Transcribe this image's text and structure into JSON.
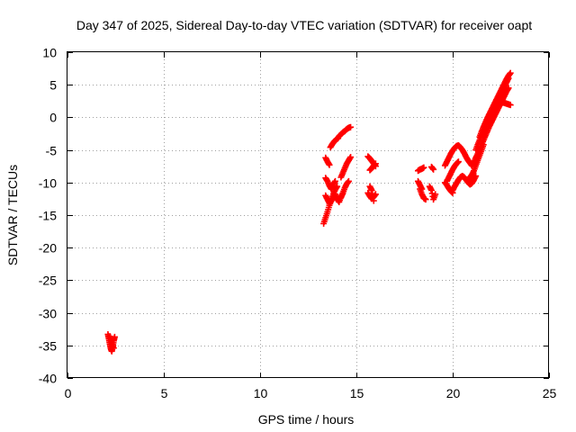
{
  "chart_data": {
    "type": "scatter",
    "title": "Day 347 of 2025, Sidereal Day-to-day VTEC variation (SDTVAR) for receiver oapt",
    "xlabel": "GPS time / hours",
    "ylabel": "SDTVAR / TECUs",
    "xlim": [
      0,
      25
    ],
    "ylim": [
      -40,
      10
    ],
    "xticks": [
      0,
      5,
      10,
      15,
      20,
      25
    ],
    "yticks": [
      -40,
      -35,
      -30,
      -25,
      -20,
      -15,
      -10,
      -5,
      0,
      5,
      10
    ],
    "grid": true,
    "marker": "plus",
    "color": "#ff0000",
    "series": [
      {
        "name": "SDTVAR",
        "segments": [
          {
            "x": [
              2.1,
              2.15,
              2.2,
              2.25,
              2.3,
              2.35,
              2.4,
              2.45
            ],
            "y": [
              -33.3,
              -34.0,
              -34.8,
              -35.5,
              -35.9,
              -35.2,
              -34.3,
              -33.7
            ]
          },
          {
            "x": [
              2.2,
              2.3,
              2.4
            ],
            "y": [
              -33.6,
              -34.6,
              -35.4
            ]
          },
          {
            "x": [
              13.3,
              13.4,
              13.5,
              13.6,
              13.7,
              13.8,
              13.9,
              14.0
            ],
            "y": [
              -16.3,
              -15.4,
              -14.5,
              -13.5,
              -12.7,
              -11.8,
              -11.1,
              -10.6
            ]
          },
          {
            "x": [
              13.4,
              13.5,
              13.6,
              13.7,
              13.8,
              13.9,
              14.0,
              14.1,
              14.2,
              14.3
            ],
            "y": [
              -12.0,
              -12.6,
              -13.2,
              -12.8,
              -12.2,
              -11.8,
              -12.5,
              -13.0,
              -12.2,
              -11.6
            ]
          },
          {
            "x": [
              13.4,
              13.5,
              13.6,
              13.7,
              13.8,
              13.9
            ],
            "y": [
              -9.3,
              -9.8,
              -10.5,
              -11.0,
              -10.3,
              -9.8
            ]
          },
          {
            "x": [
              13.4,
              13.5,
              13.6
            ],
            "y": [
              -6.2,
              -6.8,
              -7.3
            ]
          },
          {
            "x": [
              13.65,
              13.75,
              13.85,
              13.95,
              14.05
            ],
            "y": [
              -4.6,
              -4.1,
              -3.7,
              -3.4,
              -3.2
            ]
          },
          {
            "x": [
              14.1,
              14.2,
              14.3,
              14.4,
              14.5,
              14.6,
              14.7
            ],
            "y": [
              -2.9,
              -2.6,
              -2.3,
              -2.1,
              -1.8,
              -1.6,
              -1.5
            ]
          },
          {
            "x": [
              14.2,
              14.3,
              14.4,
              14.5,
              14.6,
              14.7
            ],
            "y": [
              -9.2,
              -8.5,
              -7.8,
              -7.1,
              -6.6,
              -6.1
            ]
          },
          {
            "x": [
              14.2,
              14.3,
              14.4,
              14.5,
              14.6
            ],
            "y": [
              -12.3,
              -11.6,
              -10.8,
              -10.2,
              -9.8
            ]
          },
          {
            "x": [
              15.6,
              15.7,
              15.8,
              15.9,
              16.0
            ],
            "y": [
              -6.0,
              -6.3,
              -6.7,
              -7.1,
              -7.5
            ]
          },
          {
            "x": [
              15.7,
              15.8,
              15.9,
              16.0
            ],
            "y": [
              -8.1,
              -7.8,
              -7.4,
              -7.1
            ]
          },
          {
            "x": [
              15.6,
              15.7,
              15.8,
              15.9,
              16.0
            ],
            "y": [
              -11.6,
              -12.1,
              -12.5,
              -12.2,
              -11.8
            ]
          },
          {
            "x": [
              15.7,
              15.8,
              15.9
            ],
            "y": [
              -10.6,
              -11.2,
              -12.8
            ]
          },
          {
            "x": [
              18.2,
              18.3,
              18.4,
              18.5
            ],
            "y": [
              -8.2,
              -8.0,
              -7.9,
              -7.7
            ]
          },
          {
            "x": [
              18.3,
              18.4,
              18.5,
              18.6
            ],
            "y": [
              -11.0,
              -11.8,
              -12.4,
              -12.6
            ]
          },
          {
            "x": [
              18.2,
              18.3,
              18.4
            ],
            "y": [
              -9.8,
              -10.4,
              -11.0
            ]
          },
          {
            "x": [
              18.8,
              18.9,
              19.0,
              19.1
            ],
            "y": [
              -10.6,
              -11.2,
              -12.6,
              -11.8
            ]
          },
          {
            "x": [
              18.9,
              19.0
            ],
            "y": [
              -7.6,
              -8.0
            ]
          },
          {
            "x": [
              19.6,
              19.7,
              19.8,
              19.9,
              20.0
            ],
            "y": [
              -10.0,
              -10.4,
              -10.9,
              -11.3,
              -11.6
            ]
          },
          {
            "x": [
              19.6,
              19.7,
              19.8,
              19.9,
              20.0,
              20.1,
              20.2,
              20.3,
              20.4,
              20.5,
              20.6,
              20.7,
              20.8,
              20.9,
              21.0
            ],
            "y": [
              -7.4,
              -6.8,
              -6.2,
              -5.6,
              -5.1,
              -4.7,
              -4.4,
              -4.3,
              -4.6,
              -5.0,
              -5.5,
              -6.1,
              -6.6,
              -7.0,
              -7.4
            ]
          },
          {
            "x": [
              19.7,
              19.8,
              19.9,
              20.0,
              20.1,
              20.2,
              20.3
            ],
            "y": [
              -9.8,
              -9.2,
              -8.6,
              -8.0,
              -7.5,
              -7.1,
              -6.8
            ]
          },
          {
            "x": [
              20.0,
              20.1,
              20.2,
              20.3,
              20.4,
              20.5,
              20.6,
              20.7,
              20.8,
              20.9,
              21.0,
              21.1,
              21.2
            ],
            "y": [
              -11.2,
              -10.6,
              -10.1,
              -9.6,
              -9.2,
              -9.0,
              -9.2,
              -9.6,
              -10.0,
              -10.3,
              -10.1,
              -9.6,
              -9.0
            ]
          },
          {
            "x": [
              21.0,
              21.1,
              21.2,
              21.3,
              21.4,
              21.5,
              21.6,
              21.7,
              21.8,
              21.9,
              22.0,
              22.1,
              22.2,
              22.3,
              22.4,
              22.5,
              22.6,
              22.7,
              22.8,
              22.9
            ],
            "y": [
              -7.4,
              -6.9,
              -6.2,
              -5.6,
              -4.9,
              -4.2,
              -3.5,
              -2.8,
              -2.1,
              -1.4,
              -0.8,
              -0.2,
              0.4,
              1.0,
              1.6,
              2.2,
              2.8,
              3.4,
              4.0,
              4.5
            ]
          },
          {
            "x": [
              21.2,
              21.3,
              21.4,
              21.5,
              21.6,
              21.7,
              21.8,
              21.9,
              22.0,
              22.1,
              22.2,
              22.3,
              22.4,
              22.5,
              22.6,
              22.7,
              22.8,
              22.9
            ],
            "y": [
              -5.0,
              -4.2,
              -3.5,
              -2.7,
              -2.0,
              -1.4,
              -0.7,
              -0.1,
              0.6,
              1.2,
              1.8,
              2.4,
              3.0,
              3.6,
              4.2,
              4.8,
              5.4,
              6.0
            ]
          },
          {
            "x": [
              21.4,
              21.5,
              21.6,
              21.7,
              21.8,
              21.9,
              22.0,
              22.1,
              22.2,
              22.3,
              22.4,
              22.5,
              22.6,
              22.7,
              22.8,
              22.9,
              23.0
            ],
            "y": [
              -3.0,
              -2.2,
              -1.5,
              -0.8,
              -0.1,
              0.5,
              1.1,
              1.7,
              2.3,
              2.9,
              3.5,
              4.1,
              4.7,
              5.3,
              5.9,
              6.4,
              6.8
            ]
          },
          {
            "x": [
              21.6,
              21.7,
              21.8,
              21.9,
              22.0,
              22.1,
              22.2,
              22.3,
              22.4,
              22.5,
              22.6,
              22.7,
              22.8,
              22.9,
              23.0
            ],
            "y": [
              -1.5,
              -0.9,
              -0.3,
              0.3,
              0.8,
              1.3,
              1.7,
              2.0,
              2.2,
              2.3,
              2.3,
              2.2,
              2.1,
              2.0,
              1.9
            ]
          },
          {
            "x": [
              20.8,
              20.9,
              21.0,
              21.1,
              21.2,
              21.3,
              21.4,
              21.5,
              21.6
            ],
            "y": [
              -9.6,
              -9.2,
              -8.8,
              -8.2,
              -7.4,
              -6.6,
              -5.8,
              -5.0,
              -4.2
            ]
          }
        ]
      }
    ]
  }
}
